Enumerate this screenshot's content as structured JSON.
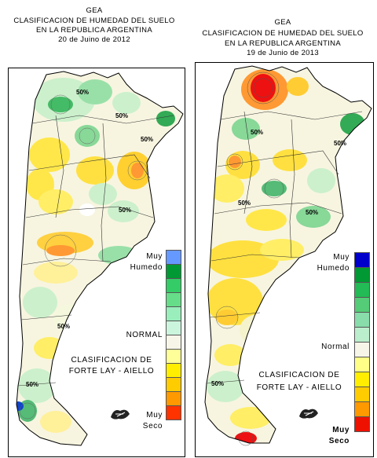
{
  "left": {
    "org": "GEA",
    "title1": "CLASIFICACION DE HUMEDAD DEL SUELO",
    "title2": "EN LA REPUBLICA ARGENTINA",
    "date": "20 de Juino de 2012",
    "legend_top_1": "Muy",
    "legend_top_2": "Humedo",
    "legend_mid": "NORMAL",
    "legend_bottom_1": "Muy",
    "legend_bottom_2": "Seco",
    "classification_1": "CLASIFICACION DE",
    "classification_2": "FORTE LAY - AIELLO",
    "contour_labels": [
      "50%",
      "50%",
      "50%",
      "50%",
      "50%",
      "50%"
    ]
  },
  "right": {
    "org": "GEA",
    "title1": "CLASIFICACION DE HUMEDAD DEL SUELO",
    "title2": "EN LA REPUBLICA ARGENTINA",
    "date": "19 de Junio de 2013",
    "legend_top_1": "Muy",
    "legend_top_2": "Humedo",
    "legend_mid": "Normal",
    "legend_bottom_1": "Muy",
    "legend_bottom_2": "Seco",
    "classification_1": "CLASIFICACION DE",
    "classification_2": "FORTE LAY - AIELLO",
    "contour_labels": [
      "50%",
      "50%",
      "50%",
      "50%",
      "50%"
    ]
  },
  "legend_colors": [
    "#6699ff",
    "#009933",
    "#33cc66",
    "#66dd88",
    "#99eebb",
    "#ccf5dd",
    "#f7f5e8",
    "#ffff99",
    "#ffee00",
    "#ffcc00",
    "#ff9900",
    "#ff3300"
  ],
  "legend_colors_right": [
    "#0000cc",
    "#009933",
    "#22bb55",
    "#55cc77",
    "#88ddaa",
    "#bbeecc",
    "#f7f5e8",
    "#ffff88",
    "#ffee00",
    "#ffcc00",
    "#ff9900",
    "#ee1100"
  ],
  "logo_icon": "gea-logo-icon"
}
